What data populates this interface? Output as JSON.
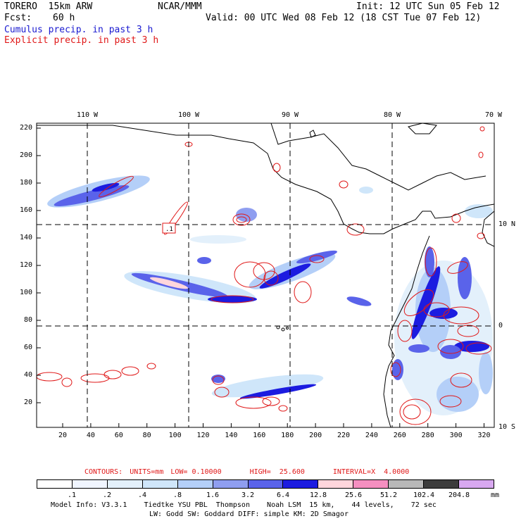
{
  "header": {
    "model_name": "TORERO  15km ARW",
    "org": "NCAR/MMM",
    "init": "Init: 12 UTC Sun 05 Feb 12",
    "fcst_label": "Fcst:",
    "fcst_value": "60 h",
    "valid": "Valid: 00 UTC Wed 08 Feb 12 (18 CST Tue 07 Feb 12)",
    "field1": "Cumulus precip. in past 3 h",
    "field2": "Explicit precip. in past 3 h"
  },
  "colors": {
    "cumulus": "#1a1ad0",
    "explicit": "#e01818"
  },
  "map": {
    "lon_labels": [
      "110 W",
      "100 W",
      "90 W",
      "80 W",
      "70 W"
    ],
    "lat_labels": [
      "10 N",
      "0",
      "10 S"
    ],
    "y_ticks": [
      "220",
      "200",
      "180",
      "160",
      "140",
      "120",
      "100",
      "80",
      "60",
      "40",
      "20"
    ],
    "x_ticks": [
      "20",
      "40",
      "60",
      "80",
      "100",
      "120",
      "140",
      "160",
      "180",
      "200",
      "220",
      "240",
      "260",
      "280",
      "300",
      "320"
    ],
    "contour_label": ".1"
  },
  "contours_line": {
    "contours": "CONTOURS:",
    "units": "UNITS=mm",
    "low": "LOW= 0.10000",
    "high": "HIGH=  25.600",
    "interval": "INTERVAL=X  4.0000"
  },
  "colorbar": {
    "unit": "mm",
    "bins": [
      {
        "label": ".1",
        "color": "#ffffff"
      },
      {
        "label": ".2",
        "color": "#f0f5ff"
      },
      {
        "label": ".4",
        "color": "#e3f0fb"
      },
      {
        "label": ".8",
        "color": "#cfe6fa"
      },
      {
        "label": "1.6",
        "color": "#b4cff8"
      },
      {
        "label": "3.2",
        "color": "#8f9ef0"
      },
      {
        "label": "6.4",
        "color": "#5a63ea"
      },
      {
        "label": "12.8",
        "color": "#1c1ce0"
      },
      {
        "label": "25.6",
        "color": "#ffd6dc"
      },
      {
        "label": "51.2",
        "color": "#f58fc0"
      },
      {
        "label": "102.4",
        "color": "#b8b8b8"
      },
      {
        "label": "204.8",
        "color": "#3c3c3c"
      },
      {
        "label": "",
        "color": "#d8a8f0"
      }
    ]
  },
  "model_info": {
    "line1": "Model Info: V3.3.1    Tiedtke YSU PBL  Thompson    Noah LSM  15 km,    44 levels,    72 sec",
    "line2": "LW: Godd SW: Goddard DIFF: simple KM: 2D Smagor"
  }
}
